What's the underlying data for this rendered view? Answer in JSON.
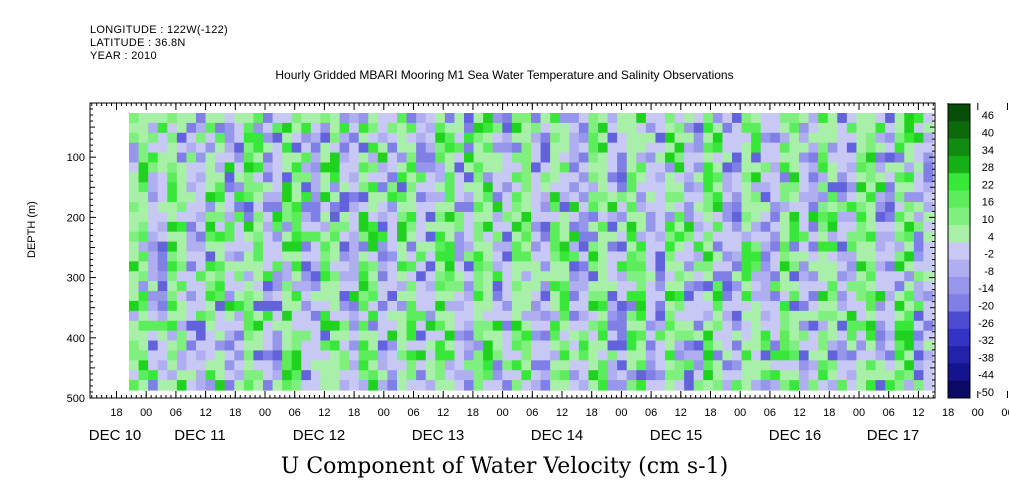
{
  "header": {
    "longitude": "LONGITUDE : 122W(-122)",
    "latitude": "LATITUDE : 36.8N",
    "year": "YEAR : 2010",
    "title": "Hourly Gridded MBARI Mooring M1 Sea Water Temperature and Salinity Observations"
  },
  "chart_data": {
    "type": "heatmap",
    "title": "U Component of Water Velocity (cm s-1)",
    "ylabel": "DEPTH (m)",
    "yticks": [
      100,
      200,
      300,
      400,
      500
    ],
    "ylim": [
      500,
      10
    ],
    "hour_ticks": [
      "18",
      "00",
      "06",
      "12",
      "18",
      "00",
      "06",
      "12",
      "18",
      "00",
      "06",
      "12",
      "18",
      "00",
      "06",
      "12",
      "18",
      "00",
      "06",
      "12",
      "18",
      "00",
      "06",
      "12",
      "18",
      "00",
      "06",
      "12",
      "18",
      "00",
      "06",
      "12"
    ],
    "day_labels": [
      "DEC 10",
      "DEC 11",
      "DEC 12",
      "DEC 13",
      "DEC 14",
      "DEC 15",
      "DEC 16",
      "DEC 17"
    ],
    "colorbar_labels": [
      "46",
      "40",
      "34",
      "28",
      "22",
      "16",
      "10",
      "4",
      "-2",
      "-8",
      "-14",
      "-20",
      "-26",
      "-32",
      "-38",
      "-44",
      "-50"
    ],
    "colorbar_range": [
      -50,
      52
    ],
    "palette": {
      "positive": [
        "#a8f0a8",
        "#7ff07f",
        "#5ced5c",
        "#38e838",
        "#1ed21e",
        "#16b016",
        "#118c11",
        "#0c6a0c",
        "#084d08"
      ],
      "negative": [
        "#c8c8f4",
        "#aeaef0",
        "#9696ea",
        "#7f7fe6",
        "#6262dc",
        "#4b4bd0",
        "#3434c4",
        "#2222aa",
        "#14148c",
        "#0a0a66"
      ]
    },
    "sign_bands": [
      1,
      -1,
      1,
      -1,
      1,
      -1,
      1,
      -1,
      1,
      -1,
      1,
      -1,
      1,
      -1,
      1,
      -1,
      1,
      -1,
      1,
      -1,
      1,
      -1,
      1,
      -1,
      1,
      -1,
      1,
      -1,
      1,
      -1,
      1,
      -1,
      1,
      -1,
      1,
      -1,
      1,
      -1,
      1,
      -1,
      1,
      -1
    ]
  }
}
